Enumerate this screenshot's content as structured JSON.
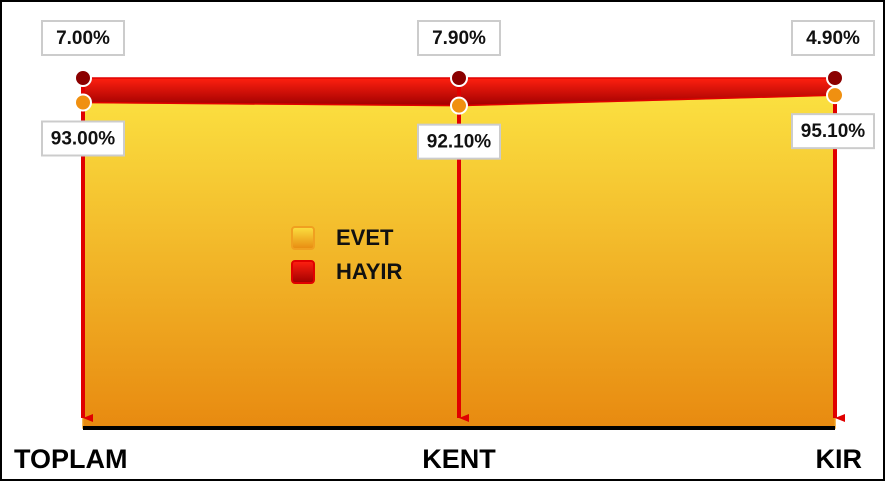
{
  "chart_data": {
    "type": "stacked-area",
    "categories": [
      "TOPLAM",
      "KENT",
      "KIR"
    ],
    "series": [
      {
        "name": "EVET",
        "color": "#f0a020",
        "values": [
          93,
          92.1,
          95.1
        ],
        "value_labels": [
          "93.00%",
          "92.10%",
          "95.10%"
        ]
      },
      {
        "name": "HAYIR",
        "color": "#e00000",
        "values": [
          7,
          7.9,
          4.9
        ],
        "value_labels": [
          "7.00%",
          "7.90%",
          "4.90%"
        ]
      }
    ],
    "ylim": [
      0,
      100
    ]
  }
}
